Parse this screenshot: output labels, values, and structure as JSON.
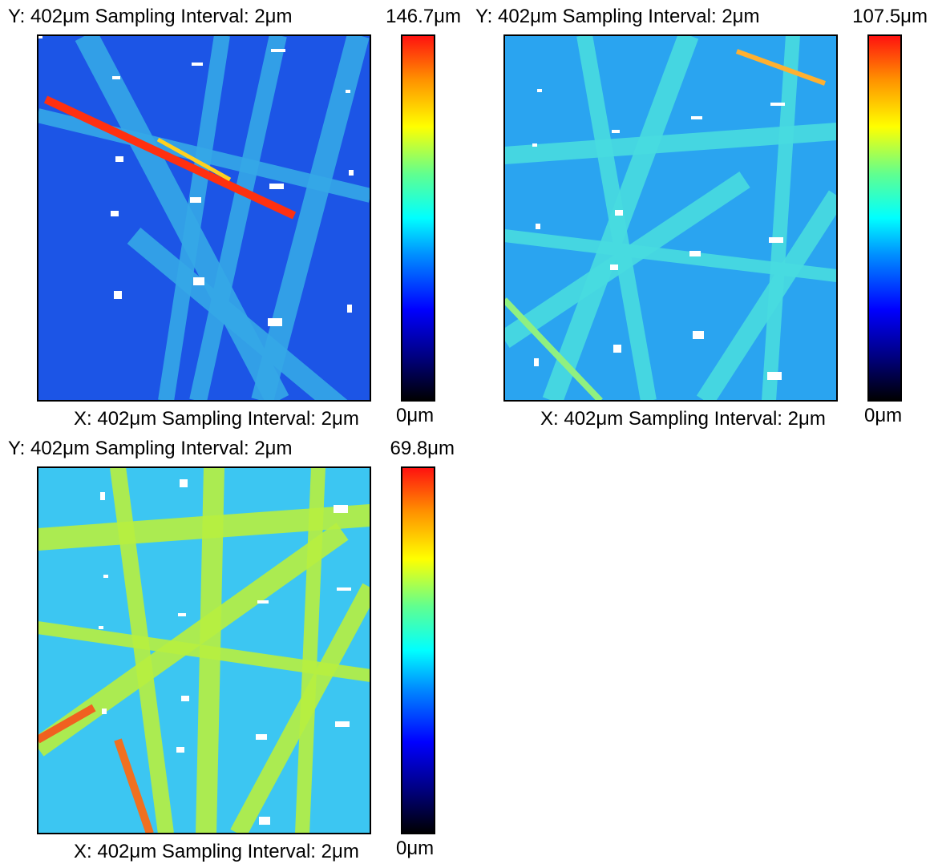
{
  "panels": [
    {
      "y_label": "Y: 402μm Sampling Interval: 2μm",
      "x_label": "X: 402μm Sampling Interval: 2μm",
      "colorbar_max": "146.7μm",
      "colorbar_min": "0μm"
    },
    {
      "y_label": "Y: 402μm Sampling Interval: 2μm",
      "x_label": "X: 402μm Sampling Interval: 2μm",
      "colorbar_max": "107.5μm",
      "colorbar_min": "0μm"
    },
    {
      "y_label": "Y: 402μm Sampling Interval: 2μm",
      "x_label": "X: 402μm Sampling Interval: 2μm",
      "colorbar_max": "69.8μm",
      "colorbar_min": "0μm"
    }
  ]
}
